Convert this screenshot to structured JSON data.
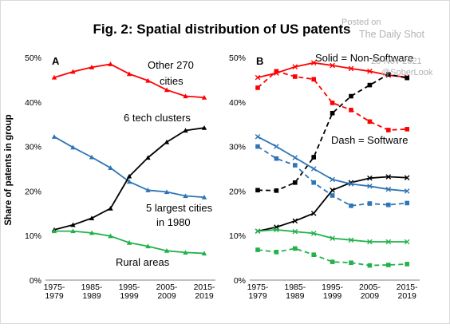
{
  "figure": {
    "title": "Fig. 2: Spatial distribution of US patents",
    "ylabel": "Share of patents in group"
  },
  "watermark": {
    "posted_on": "Posted on",
    "source": "The Daily Shot",
    "date": "23-Nov-2021",
    "handle": "@SoberLook"
  },
  "colors": {
    "red": "#ff0000",
    "blue": "#2e75b6",
    "black": "#000000",
    "green": "#21b24b"
  },
  "chart_data": [
    {
      "type": "line",
      "panel": "A",
      "x": [
        1,
        2,
        3,
        4,
        5,
        6,
        7,
        8,
        9
      ],
      "xticks": [
        {
          "x": 1,
          "lines": [
            "1975-",
            "1979"
          ]
        },
        {
          "x": 3,
          "lines": [
            "1985-",
            "1989"
          ]
        },
        {
          "x": 5,
          "lines": [
            "1995-",
            "1999"
          ]
        },
        {
          "x": 7,
          "lines": [
            "2005-",
            "2009"
          ]
        },
        {
          "x": 9,
          "lines": [
            "2015-",
            "2019"
          ]
        }
      ],
      "ylim": [
        0,
        50
      ],
      "yticks": [
        "0%",
        "10%",
        "20%",
        "30%",
        "40%",
        "50%"
      ],
      "series": [
        {
          "key": "other",
          "color": "#ff0000",
          "marker": "triangle",
          "dash": false,
          "values": [
            45.5,
            46.8,
            47.8,
            48.5,
            46.3,
            44.8,
            42.7,
            41.3,
            41.0
          ]
        },
        {
          "key": "largest",
          "color": "#2e75b6",
          "marker": "triangle",
          "dash": false,
          "values": [
            32.2,
            29.8,
            27.6,
            25.2,
            22.1,
            20.2,
            19.8,
            18.9,
            18.6
          ]
        },
        {
          "key": "tech",
          "color": "#000000",
          "marker": "triangle",
          "dash": false,
          "values": [
            11.3,
            12.4,
            13.9,
            16.1,
            23.3,
            27.5,
            31.0,
            33.6,
            34.2
          ]
        },
        {
          "key": "rural",
          "color": "#21b24b",
          "marker": "triangle",
          "dash": false,
          "values": [
            11.0,
            11.0,
            10.6,
            9.9,
            8.4,
            7.6,
            6.6,
            6.2,
            6.0
          ]
        }
      ],
      "annotations": [
        {
          "key": "other_1",
          "text": "Other 270"
        },
        {
          "key": "other_2",
          "text": "cities"
        },
        {
          "key": "tech",
          "text": "6 tech clusters"
        },
        {
          "key": "largest_1",
          "text": "5 largest cities"
        },
        {
          "key": "largest_2",
          "text": "in 1980"
        },
        {
          "key": "rural",
          "text": "Rural areas"
        }
      ]
    },
    {
      "type": "line",
      "panel": "B",
      "x": [
        1,
        2,
        3,
        4,
        5,
        6,
        7,
        8,
        9
      ],
      "xticks": [
        {
          "x": 1,
          "lines": [
            "1975-",
            "1979"
          ]
        },
        {
          "x": 3,
          "lines": [
            "1985-",
            "1989"
          ]
        },
        {
          "x": 5,
          "lines": [
            "1995-",
            "1999"
          ]
        },
        {
          "x": 7,
          "lines": [
            "2005-",
            "2009"
          ]
        },
        {
          "x": 9,
          "lines": [
            "2015-",
            "2019"
          ]
        }
      ],
      "ylim": [
        0,
        50
      ],
      "yticks": [
        "0%",
        "10%",
        "20%",
        "30%",
        "40%",
        "50%"
      ],
      "series": [
        {
          "key": "other_nonsw",
          "color": "#ff0000",
          "marker": "x",
          "dash": false,
          "values": [
            45.5,
            46.5,
            47.9,
            48.8,
            48.2,
            47.5,
            46.9,
            46.0,
            45.6
          ]
        },
        {
          "key": "other_sw",
          "color": "#ff0000",
          "marker": "square",
          "dash": true,
          "values": [
            43.2,
            46.9,
            45.7,
            45.1,
            39.8,
            38.2,
            35.6,
            33.7,
            33.9
          ]
        },
        {
          "key": "tech_nonsw",
          "color": "#000000",
          "marker": "x",
          "dash": false,
          "values": [
            11.0,
            11.9,
            13.3,
            15.0,
            20.2,
            21.9,
            22.9,
            23.2,
            23.0
          ]
        },
        {
          "key": "tech_sw",
          "color": "#000000",
          "marker": "square",
          "dash": true,
          "values": [
            20.2,
            20.1,
            21.9,
            27.6,
            37.5,
            41.3,
            43.8,
            46.2,
            45.4
          ]
        },
        {
          "key": "largest_nonsw",
          "color": "#2e75b6",
          "marker": "x",
          "dash": false,
          "values": [
            32.2,
            30.0,
            27.5,
            25.0,
            22.6,
            21.6,
            21.1,
            20.4,
            20.0
          ]
        },
        {
          "key": "largest_sw",
          "color": "#2e75b6",
          "marker": "square",
          "dash": true,
          "values": [
            30.0,
            27.3,
            25.8,
            21.9,
            19.0,
            16.7,
            17.2,
            16.9,
            17.3
          ]
        },
        {
          "key": "rural_nonsw",
          "color": "#21b24b",
          "marker": "x",
          "dash": false,
          "values": [
            11.0,
            11.3,
            10.9,
            10.5,
            9.4,
            9.0,
            8.6,
            8.6,
            8.6
          ]
        },
        {
          "key": "rural_sw",
          "color": "#21b24b",
          "marker": "square",
          "dash": true,
          "values": [
            6.8,
            6.3,
            7.1,
            5.7,
            4.1,
            3.9,
            3.3,
            3.4,
            3.6
          ]
        }
      ],
      "annotations": [
        {
          "key": "solid",
          "text": "Solid = Non-Software"
        },
        {
          "key": "dash",
          "text": "Dash = Software"
        }
      ]
    }
  ]
}
